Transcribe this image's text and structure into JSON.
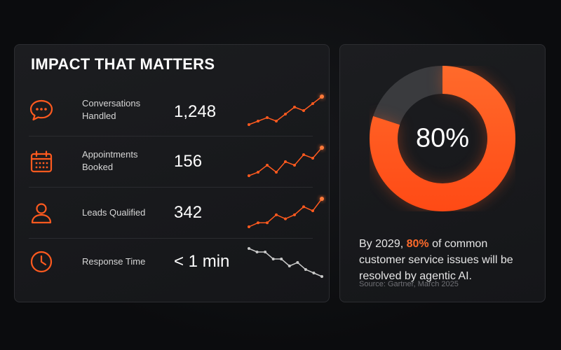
{
  "panel": {
    "title": "IMPACT THAT MATTERS",
    "metrics": [
      {
        "label_line1": "Conversations",
        "label_line2": "Handled",
        "value": "1,248",
        "icon": "chat-bubble-icon",
        "trend": [
          2,
          3,
          4,
          3,
          5,
          7,
          6,
          8,
          10
        ]
      },
      {
        "label_line1": "Appointments",
        "label_line2": "Booked",
        "value": "156",
        "icon": "calendar-icon",
        "trend": [
          2,
          3,
          5,
          3,
          6,
          5,
          8,
          7,
          10
        ]
      },
      {
        "label_line1": "Leads Qualified",
        "label_line2": "",
        "value": "342",
        "icon": "user-icon",
        "trend": [
          2,
          3,
          3,
          5,
          4,
          5,
          7,
          6,
          9
        ]
      },
      {
        "label_line1": "Response Time",
        "label_line2": "",
        "value": "< 1 min",
        "icon": "clock-icon",
        "trend": [
          9,
          8,
          8,
          6,
          6,
          4,
          5,
          3,
          2,
          1
        ]
      }
    ]
  },
  "stat": {
    "donut_value": "80%",
    "donut_percent": 80,
    "text_before": "By 2029, ",
    "text_highlight": "80%",
    "text_after": " of common customer service issues will be resolved by agentic AI.",
    "source": "Source: Gartner, March 2025"
  },
  "colors": {
    "accent": "#ff5a1f",
    "accent_light": "#ff7a3a",
    "donut_rest": "#3a3b3e",
    "trend_down": "#c9c9c9"
  }
}
